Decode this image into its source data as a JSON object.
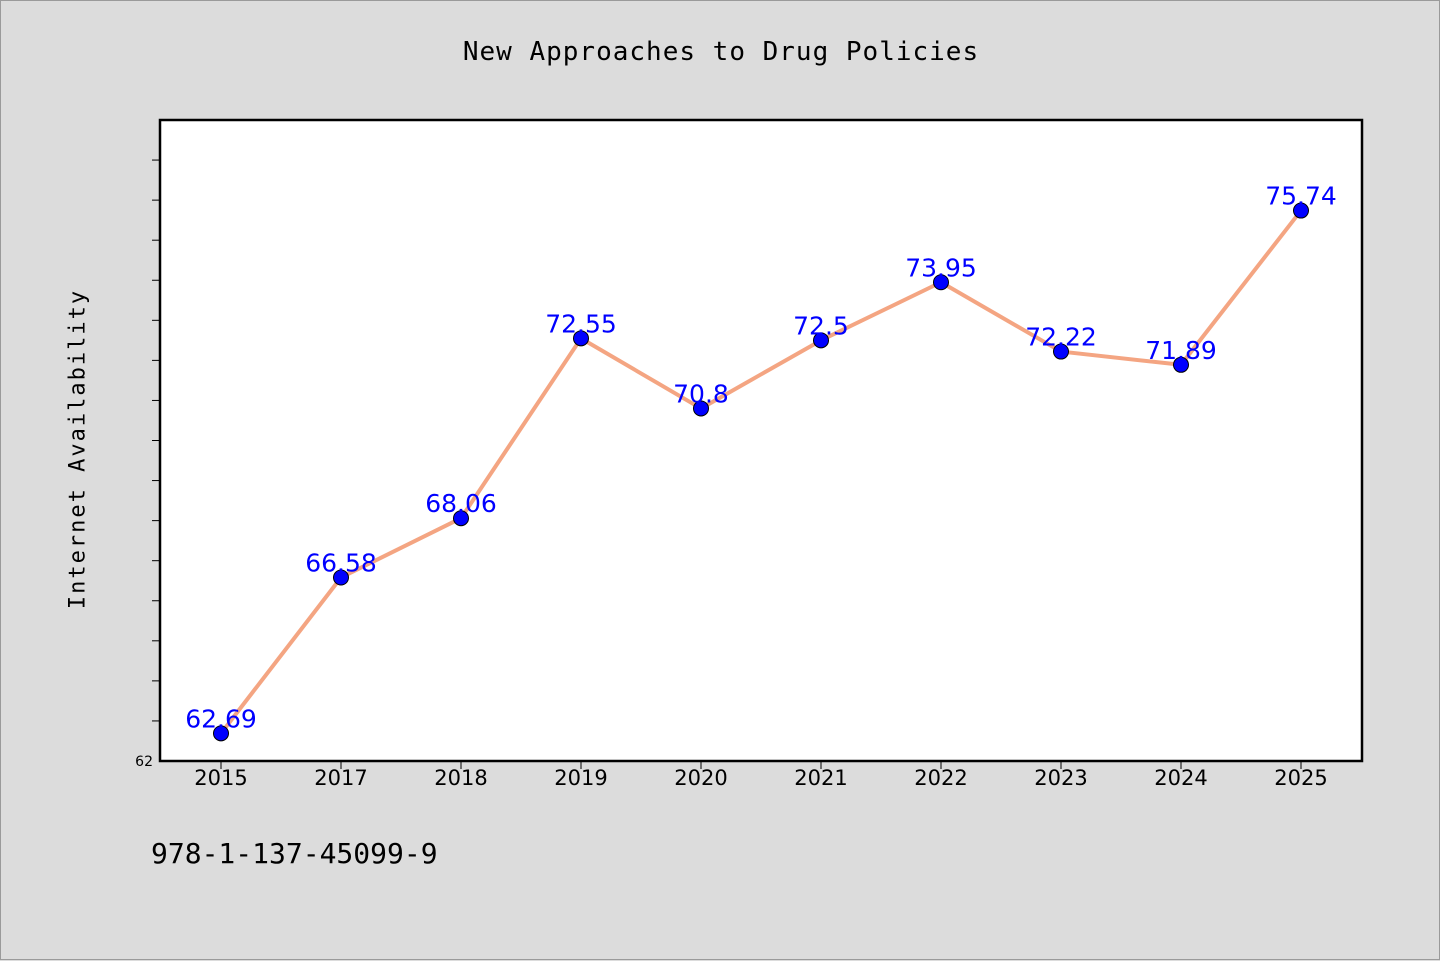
{
  "chart_data": {
    "type": "line",
    "title": "New Approaches to Drug Policies",
    "ylabel": "Internet Availability",
    "xlabel": "",
    "categories": [
      "2015",
      "2017",
      "2018",
      "2019",
      "2020",
      "2021",
      "2022",
      "2023",
      "2024",
      "2025"
    ],
    "series": [
      {
        "values": [
          62.69,
          66.58,
          68.06,
          72.55,
          70.8,
          72.5,
          73.95,
          72.22,
          71.89,
          75.74
        ],
        "labels": [
          "62.69",
          "66.58",
          "68.06",
          "72.55",
          "70.8",
          "72.5",
          "73.95",
          "72.22",
          "71.89",
          "75.74"
        ],
        "line_color": "#f4a582",
        "marker_color": "#0000ff",
        "label_color": "#0000ff"
      }
    ],
    "ylim": [
      62,
      78
    ],
    "y_tick_labels": [
      "62"
    ],
    "grid": false,
    "legend": "none"
  },
  "footer": {
    "isbn": "978-1-137-45099-9"
  },
  "colors": {
    "background": "#dcdcdc",
    "plot_background": "#ffffff"
  }
}
